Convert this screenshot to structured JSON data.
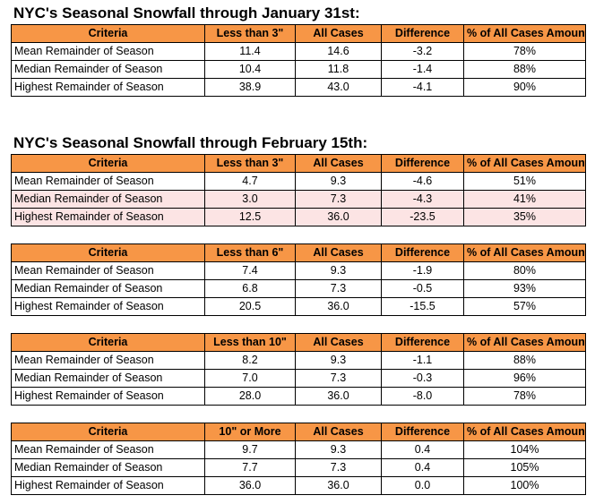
{
  "sections": [
    {
      "title": "NYC's Seasonal Snowfall through January 31st:",
      "tables": [
        {
          "headers": [
            "Criteria",
            "Less than 3\"",
            "All Cases",
            "Difference",
            "% of All Cases Amount"
          ],
          "rows": [
            {
              "cells": [
                "Mean Remainder of Season",
                "11.4",
                "14.6",
                "-3.2",
                "78%"
              ],
              "highlight": false
            },
            {
              "cells": [
                "Median Remainder of Season",
                "10.4",
                "11.8",
                "-1.4",
                "88%"
              ],
              "highlight": false
            },
            {
              "cells": [
                "Highest Remainder of Season",
                "38.9",
                "43.0",
                "-4.1",
                "90%"
              ],
              "highlight": false
            }
          ]
        }
      ]
    },
    {
      "title": "NYC's Seasonal Snowfall through February 15th:",
      "tables": [
        {
          "headers": [
            "Criteria",
            "Less than 3\"",
            "All Cases",
            "Difference",
            "% of All Cases Amount"
          ],
          "rows": [
            {
              "cells": [
                "Mean Remainder of Season",
                "4.7",
                "9.3",
                "-4.6",
                "51%"
              ],
              "highlight": false
            },
            {
              "cells": [
                "Median Remainder of Season",
                "3.0",
                "7.3",
                "-4.3",
                "41%"
              ],
              "highlight": true
            },
            {
              "cells": [
                "Highest Remainder of Season",
                "12.5",
                "36.0",
                "-23.5",
                "35%"
              ],
              "highlight": true
            }
          ]
        },
        {
          "headers": [
            "Criteria",
            "Less than 6\"",
            "All Cases",
            "Difference",
            "% of All Cases Amount"
          ],
          "rows": [
            {
              "cells": [
                "Mean Remainder of Season",
                "7.4",
                "9.3",
                "-1.9",
                "80%"
              ],
              "highlight": false
            },
            {
              "cells": [
                "Median Remainder of Season",
                "6.8",
                "7.3",
                "-0.5",
                "93%"
              ],
              "highlight": false
            },
            {
              "cells": [
                "Highest Remainder of Season",
                "20.5",
                "36.0",
                "-15.5",
                "57%"
              ],
              "highlight": false
            }
          ]
        },
        {
          "headers": [
            "Criteria",
            "Less than 10\"",
            "All Cases",
            "Difference",
            "% of All Cases Amount"
          ],
          "rows": [
            {
              "cells": [
                "Mean Remainder of Season",
                "8.2",
                "9.3",
                "-1.1",
                "88%"
              ],
              "highlight": false
            },
            {
              "cells": [
                "Median Remainder of Season",
                "7.0",
                "7.3",
                "-0.3",
                "96%"
              ],
              "highlight": false
            },
            {
              "cells": [
                "Highest Remainder of Season",
                "28.0",
                "36.0",
                "-8.0",
                "78%"
              ],
              "highlight": false
            }
          ]
        },
        {
          "headers": [
            "Criteria",
            "10\" or More",
            "All Cases",
            "Difference",
            "% of All Cases Amount"
          ],
          "rows": [
            {
              "cells": [
                "Mean Remainder of Season",
                "9.7",
                "9.3",
                "0.4",
                "104%"
              ],
              "highlight": false
            },
            {
              "cells": [
                "Median Remainder of Season",
                "7.7",
                "7.3",
                "0.4",
                "105%"
              ],
              "highlight": false
            },
            {
              "cells": [
                "Highest Remainder of Season",
                "36.0",
                "36.0",
                "0.0",
                "100%"
              ],
              "highlight": false
            }
          ]
        }
      ]
    }
  ],
  "colors": {
    "header_fill": "#f79646",
    "highlight_fill": "#fce4e4",
    "border": "#000000"
  }
}
